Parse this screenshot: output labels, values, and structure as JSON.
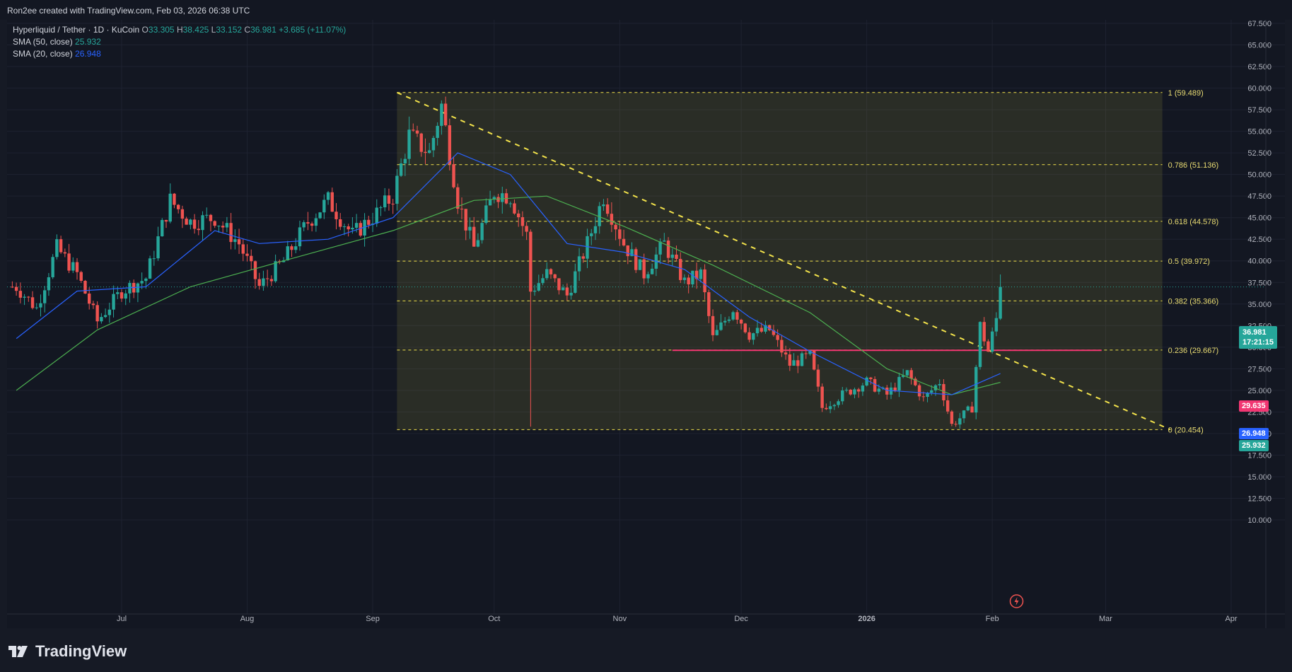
{
  "header": {
    "credit": "Ron2ee created with TradingView.com, Feb 03, 2026 06:38 UTC"
  },
  "legend": {
    "symbol": "Hyperliquid / Tether · 1D · KuCoin",
    "o_label": "O",
    "o": "33.305",
    "h_label": "H",
    "h": "38.425",
    "l_label": "L",
    "l": "33.152",
    "c_label": "C",
    "c": "36.981",
    "change": "+3.685 (+11.07%)",
    "sma50_label": "SMA (50, close)",
    "sma50_value": "25.932",
    "sma20_label": "SMA (20, close)",
    "sma20_value": "26.948"
  },
  "price_tags": {
    "current": "36.981",
    "countdown": "17:21:15",
    "resistance": "29.635",
    "sma20": "26.948",
    "sma50": "25.932"
  },
  "colors": {
    "up": "#26a69a",
    "down": "#ef5350",
    "sma20": "#2962ff",
    "sma50": "#4caf50",
    "fib": "#f2e24b",
    "resistance": "#f23672",
    "background": "#131722"
  },
  "icons": {
    "event_marker": "lightning-icon",
    "logo": "tradingview-logo-icon"
  },
  "footer": {
    "brand": "TradingView"
  },
  "chart_data": {
    "type": "candlestick",
    "title": "Hyperliquid / Tether · 1D · KuCoin",
    "x_ticks": [
      "Jul",
      "Aug",
      "Sep",
      "Oct",
      "Nov",
      "Dec",
      "2026",
      "Feb",
      "Mar",
      "Apr"
    ],
    "y_ticks": [
      "67.500",
      "65.000",
      "62.500",
      "60.000",
      "57.500",
      "55.000",
      "52.500",
      "50.000",
      "47.500",
      "45.000",
      "42.500",
      "40.000",
      "37.500",
      "35.000",
      "32.500",
      "30.000",
      "27.500",
      "25.000",
      "22.500",
      "20.000",
      "17.500",
      "15.000",
      "12.500",
      "10.000"
    ],
    "ylim": [
      10,
      67.5
    ],
    "fib_levels": [
      {
        "label": "1 (59.489)",
        "value": 59.489
      },
      {
        "label": "0.786 (51.136)",
        "value": 51.136
      },
      {
        "label": "0.618 (44.578)",
        "value": 44.578
      },
      {
        "label": "0.5 (39.972)",
        "value": 39.972
      },
      {
        "label": "0.382 (35.366)",
        "value": 35.366
      },
      {
        "label": "0.236 (29.667)",
        "value": 29.667
      },
      {
        "label": "0 (20.454)",
        "value": 20.454
      }
    ],
    "resistance_level": 29.635,
    "downtrend_line": [
      {
        "date": "2025-09-07",
        "value": 59.489
      },
      {
        "date": "2026-03-17",
        "value": 20.454
      }
    ],
    "last_close": 36.981,
    "series_names": [
      "SMA (50, close)",
      "SMA (20, close)"
    ],
    "close_path": [
      {
        "date": "2025-06-05",
        "value": 37.0
      },
      {
        "date": "2025-06-10",
        "value": 34.5
      },
      {
        "date": "2025-06-15",
        "value": 41.5
      },
      {
        "date": "2025-06-20",
        "value": 38.5
      },
      {
        "date": "2025-06-25",
        "value": 33.0
      },
      {
        "date": "2025-07-01",
        "value": 36.5
      },
      {
        "date": "2025-07-07",
        "value": 38.0
      },
      {
        "date": "2025-07-13",
        "value": 47.0
      },
      {
        "date": "2025-07-18",
        "value": 44.5
      },
      {
        "date": "2025-07-24",
        "value": 45.0
      },
      {
        "date": "2025-07-30",
        "value": 42.0
      },
      {
        "date": "2025-08-04",
        "value": 37.0
      },
      {
        "date": "2025-08-10",
        "value": 40.0
      },
      {
        "date": "2025-08-16",
        "value": 44.5
      },
      {
        "date": "2025-08-21",
        "value": 47.0
      },
      {
        "date": "2025-08-27",
        "value": 43.0
      },
      {
        "date": "2025-09-02",
        "value": 45.5
      },
      {
        "date": "2025-09-06",
        "value": 47.5
      },
      {
        "date": "2025-09-10",
        "value": 54.5
      },
      {
        "date": "2025-09-15",
        "value": 52.5
      },
      {
        "date": "2025-09-18",
        "value": 58.0
      },
      {
        "date": "2025-09-22",
        "value": 47.0
      },
      {
        "date": "2025-09-26",
        "value": 41.5
      },
      {
        "date": "2025-10-01",
        "value": 48.0
      },
      {
        "date": "2025-10-05",
        "value": 47.5
      },
      {
        "date": "2025-10-09",
        "value": 43.0
      },
      {
        "date": "2025-10-10",
        "value": 36.5
      },
      {
        "date": "2025-10-14",
        "value": 38.5
      },
      {
        "date": "2025-10-19",
        "value": 36.0
      },
      {
        "date": "2025-10-24",
        "value": 42.0
      },
      {
        "date": "2025-10-28",
        "value": 47.5
      },
      {
        "date": "2025-11-02",
        "value": 42.0
      },
      {
        "date": "2025-11-07",
        "value": 38.5
      },
      {
        "date": "2025-11-12",
        "value": 42.0
      },
      {
        "date": "2025-11-17",
        "value": 37.5
      },
      {
        "date": "2025-11-21",
        "value": 38.5
      },
      {
        "date": "2025-11-24",
        "value": 31.0
      },
      {
        "date": "2025-11-29",
        "value": 34.5
      },
      {
        "date": "2025-12-03",
        "value": 31.5
      },
      {
        "date": "2025-12-08",
        "value": 32.0
      },
      {
        "date": "2025-12-13",
        "value": 28.0
      },
      {
        "date": "2025-12-18",
        "value": 29.0
      },
      {
        "date": "2025-12-21",
        "value": 23.0
      },
      {
        "date": "2025-12-26",
        "value": 24.5
      },
      {
        "date": "2026-01-01",
        "value": 26.0
      },
      {
        "date": "2026-01-06",
        "value": 24.5
      },
      {
        "date": "2026-01-11",
        "value": 27.0
      },
      {
        "date": "2026-01-15",
        "value": 24.0
      },
      {
        "date": "2026-01-19",
        "value": 26.0
      },
      {
        "date": "2026-01-22",
        "value": 21.0
      },
      {
        "date": "2026-01-27",
        "value": 23.0
      },
      {
        "date": "2026-01-29",
        "value": 32.5
      },
      {
        "date": "2026-01-31",
        "value": 29.5
      },
      {
        "date": "2026-02-02",
        "value": 33.3
      },
      {
        "date": "2026-02-03",
        "value": 36.981
      }
    ],
    "sma20_path": [
      {
        "date": "2025-06-05",
        "value": 31.0
      },
      {
        "date": "2025-06-20",
        "value": 36.5
      },
      {
        "date": "2025-07-07",
        "value": 37.0
      },
      {
        "date": "2025-07-24",
        "value": 43.5
      },
      {
        "date": "2025-08-04",
        "value": 42.0
      },
      {
        "date": "2025-08-21",
        "value": 42.5
      },
      {
        "date": "2025-09-06",
        "value": 45.0
      },
      {
        "date": "2025-09-22",
        "value": 52.5
      },
      {
        "date": "2025-10-05",
        "value": 50.0
      },
      {
        "date": "2025-10-19",
        "value": 42.0
      },
      {
        "date": "2025-11-02",
        "value": 41.0
      },
      {
        "date": "2025-11-17",
        "value": 39.0
      },
      {
        "date": "2025-12-03",
        "value": 33.5
      },
      {
        "date": "2025-12-18",
        "value": 29.5
      },
      {
        "date": "2026-01-06",
        "value": 25.0
      },
      {
        "date": "2026-01-22",
        "value": 24.5
      },
      {
        "date": "2026-02-03",
        "value": 26.948
      }
    ],
    "sma50_path": [
      {
        "date": "2025-06-05",
        "value": 25.0
      },
      {
        "date": "2025-06-25",
        "value": 32.0
      },
      {
        "date": "2025-07-18",
        "value": 37.0
      },
      {
        "date": "2025-08-10",
        "value": 40.0
      },
      {
        "date": "2025-09-06",
        "value": 43.5
      },
      {
        "date": "2025-09-26",
        "value": 47.0
      },
      {
        "date": "2025-10-14",
        "value": 47.5
      },
      {
        "date": "2025-11-02",
        "value": 44.0
      },
      {
        "date": "2025-11-24",
        "value": 39.5
      },
      {
        "date": "2025-12-18",
        "value": 34.0
      },
      {
        "date": "2026-01-06",
        "value": 27.5
      },
      {
        "date": "2026-01-22",
        "value": 24.5
      },
      {
        "date": "2026-02-03",
        "value": 25.932
      }
    ]
  }
}
